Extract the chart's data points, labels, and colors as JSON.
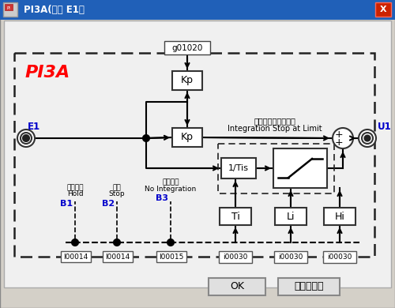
{
  "title": "PI3A(入力 E1）",
  "block_label": "PI3A",
  "input_label": "E1",
  "output_label": "U1",
  "g_label": "g01020",
  "kp_top_label": "Kp",
  "kp_mid_label": "Kp",
  "integrator_label": "1/Tis",
  "ti_label": "Ti",
  "li_label": "Li",
  "hi_label": "Hi",
  "b1_label": "B1",
  "b2_label": "B2",
  "b3_label": "B3",
  "hold_jp": "ホールド",
  "hold_en": "Hold",
  "stop_jp": "停止",
  "stop_en": "Stop",
  "noint_jp": "積分なし",
  "noint_en": "No Integration",
  "isalimit_jp": "リミット時積分停止",
  "isalimit_en": "Integration Stop at Limit",
  "i00014_b1": "I00014",
  "i00014_b2": "I00014",
  "i00015_b3": "I00015",
  "i00030_ti": "i00030",
  "i00030_li": "i00030",
  "i00030_hi": "i00030",
  "ok_label": "OK",
  "cancel_label": "キャンセル",
  "title_bar_color": "#2060b8",
  "panel_bg": "#e8e8e8",
  "win_bg": "#d4d0c8"
}
